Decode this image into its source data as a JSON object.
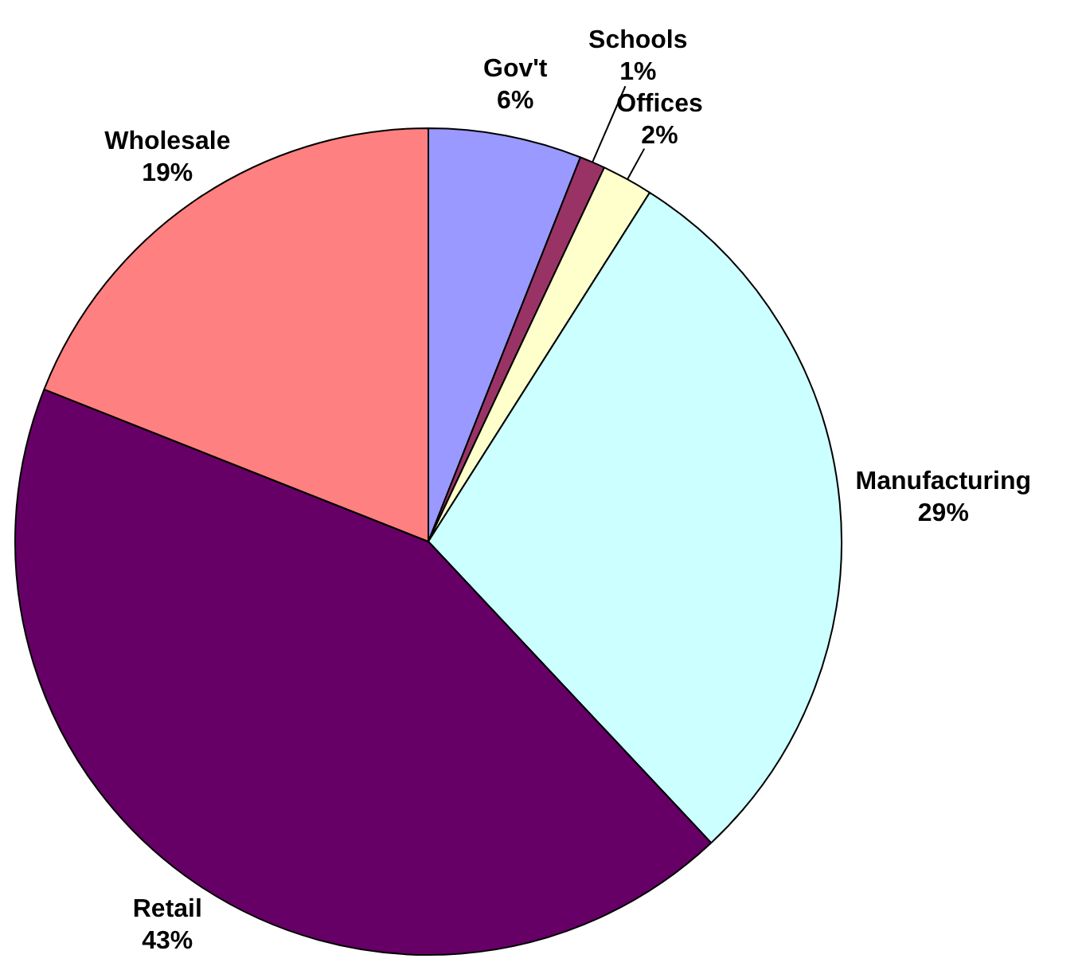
{
  "chart_data": {
    "type": "pie",
    "categories": [
      "Gov't",
      "Schools",
      "Offices",
      "Manufacturing",
      "Retail",
      "Wholesale"
    ],
    "values": [
      6,
      1,
      2,
      29,
      43,
      19
    ],
    "colors": [
      "#9999ff",
      "#993366",
      "#ffffcc",
      "#ccffff",
      "#660066",
      "#ff8080"
    ],
    "value_labels": [
      "6%",
      "1%",
      "2%",
      "29%",
      "43%",
      "19%"
    ],
    "legend": false
  }
}
